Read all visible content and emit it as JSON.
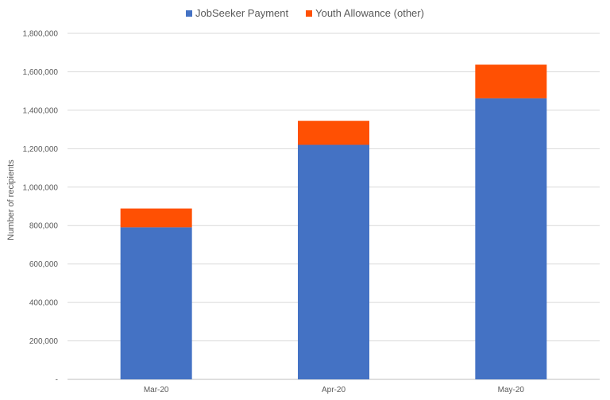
{
  "chart_data": {
    "type": "bar",
    "stacked": true,
    "title": "",
    "xlabel": "",
    "ylabel": "Number of recipients",
    "categories": [
      "Mar-20",
      "Apr-20",
      "May-20"
    ],
    "series": [
      {
        "name": "JobSeeker Payment",
        "values": [
          791000,
          1220000,
          1462000
        ],
        "color": "#4472C4"
      },
      {
        "name": "Youth Allowance (other)",
        "values": [
          98000,
          125000,
          175000
        ],
        "color": "#FF5003"
      }
    ],
    "ylim": [
      0,
      1800000
    ],
    "yticks": [
      "-",
      "200,000",
      "400,000",
      "600,000",
      "800,000",
      "1,000,000",
      "1,200,000",
      "1,400,000",
      "1,600,000",
      "1,800,000"
    ],
    "grid": true,
    "legend_position": "top-center"
  }
}
